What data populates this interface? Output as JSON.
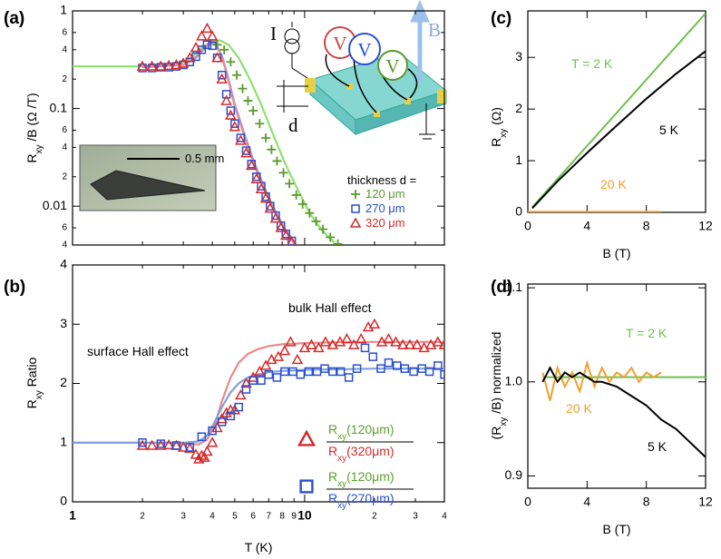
{
  "chart_data": [
    {
      "type": "scatter",
      "panel_label": "(a)",
      "y_label": [
        "R",
        "xy",
        " /B   (Ω /T)"
      ],
      "xscale": "log",
      "yscale": "log",
      "xlim": [
        1,
        40
      ],
      "ylim": [
        0.004,
        1
      ],
      "xticks": [
        1,
        2,
        3,
        4,
        5,
        6,
        7,
        8,
        9,
        10,
        20,
        30,
        40
      ],
      "yticks": [
        1,
        {
          "value": 0.6,
          "label": "6"
        },
        {
          "value": 0.4,
          "label": "4"
        },
        {
          "value": 0.2,
          "label": "2"
        },
        0.1,
        {
          "value": 0.06,
          "label": "6"
        },
        {
          "value": 0.04,
          "label": "4"
        },
        {
          "value": 0.02,
          "label": "2"
        },
        0.01,
        {
          "value": 0.006,
          "label": "6"
        },
        {
          "value": 0.004,
          "label": "4"
        }
      ],
      "legend_title": "thickness d =",
      "inset_scale": "0.5 mm",
      "schematic_labels": [
        "I",
        "V",
        "V",
        "V",
        "B",
        "d"
      ],
      "series": [
        {
          "name": "120 μm",
          "color": "#5a9a2c",
          "marker": "plus",
          "x": [
            4.2,
            4.5,
            4.8,
            5.1,
            5.4,
            5.7,
            6.0,
            6.4,
            6.8,
            7.2,
            7.6,
            8.1,
            8.6,
            9.2,
            9.8,
            10.5,
            11.2,
            12.0,
            12.9,
            13.9
          ],
          "values": [
            0.45,
            0.4,
            0.3,
            0.22,
            0.16,
            0.12,
            0.095,
            0.07,
            0.05,
            0.038,
            0.029,
            0.022,
            0.017,
            0.013,
            0.0105,
            0.0085,
            0.007,
            0.0058,
            0.0048,
            0.0041
          ]
        },
        {
          "name": "270 μm",
          "color": "#2a4fd0",
          "marker": "square",
          "x": [
            2.0,
            2.2,
            2.4,
            2.6,
            2.8,
            3.0,
            3.2,
            3.4,
            3.6,
            3.8,
            4.0,
            4.2,
            4.4,
            4.6,
            4.8,
            5.0,
            5.3,
            5.6,
            5.9,
            6.2,
            6.5,
            6.8,
            7.1,
            7.5,
            7.9,
            8.3,
            8.8
          ],
          "values": [
            0.26,
            0.26,
            0.265,
            0.265,
            0.27,
            0.28,
            0.3,
            0.34,
            0.4,
            0.45,
            0.44,
            0.33,
            0.22,
            0.14,
            0.095,
            0.07,
            0.05,
            0.037,
            0.027,
            0.02,
            0.016,
            0.0125,
            0.01,
            0.008,
            0.0063,
            0.0052,
            0.0044
          ]
        },
        {
          "name": "320 μm",
          "color": "#d42a2a",
          "marker": "triangle",
          "x": [
            2.0,
            2.2,
            2.4,
            2.6,
            2.8,
            3.0,
            3.2,
            3.4,
            3.6,
            3.8,
            4.0,
            4.2,
            4.4,
            4.6,
            4.8,
            5.0,
            5.3,
            5.6,
            5.9,
            6.2,
            6.5,
            6.8,
            7.1,
            7.5,
            7.9,
            8.3,
            8.8
          ],
          "values": [
            0.27,
            0.27,
            0.27,
            0.275,
            0.28,
            0.29,
            0.33,
            0.42,
            0.55,
            0.66,
            0.55,
            0.33,
            0.2,
            0.12,
            0.085,
            0.065,
            0.047,
            0.035,
            0.026,
            0.019,
            0.015,
            0.012,
            0.0095,
            0.0075,
            0.006,
            0.005,
            0.0043
          ]
        },
        {
          "color": "#8ee070",
          "marker": "line",
          "x": [
            1,
            2,
            2.8,
            3.2,
            3.6,
            4.0,
            4.3,
            4.7,
            5.2,
            5.8,
            6.5,
            7.3,
            8.2,
            9.3,
            10.5,
            12,
            13.5
          ],
          "values": [
            0.27,
            0.27,
            0.28,
            0.32,
            0.42,
            0.49,
            0.5,
            0.45,
            0.33,
            0.2,
            0.11,
            0.055,
            0.028,
            0.015,
            0.0085,
            0.0055,
            0.0042
          ]
        },
        {
          "color": "#7f9fe0",
          "marker": "line",
          "x": [
            2,
            3,
            3.4,
            3.8,
            4.1,
            4.4,
            4.7,
            5.0,
            5.5,
            6,
            6.6,
            7.3,
            8.1,
            9.2
          ],
          "values": [
            0.265,
            0.28,
            0.33,
            0.44,
            0.47,
            0.35,
            0.2,
            0.11,
            0.055,
            0.03,
            0.017,
            0.01,
            0.0062,
            0.004
          ]
        },
        {
          "color": "#e88a9a",
          "marker": "line",
          "x": [
            2,
            3,
            3.4,
            3.8,
            4.1,
            4.4,
            4.7,
            5.0,
            5.5,
            6,
            6.6,
            7.3,
            8.1,
            9.1
          ],
          "values": [
            0.27,
            0.28,
            0.34,
            0.45,
            0.47,
            0.34,
            0.19,
            0.105,
            0.052,
            0.028,
            0.016,
            0.0095,
            0.006,
            0.004
          ]
        }
      ]
    },
    {
      "type": "scatter",
      "panel_label": "(b)",
      "x_label": "T (K)",
      "y_label": [
        "R",
        "xy",
        "   Ratio"
      ],
      "xscale": "log",
      "xlim": [
        1,
        40
      ],
      "ylim": [
        0,
        4
      ],
      "xticks": [
        1,
        2,
        3,
        4,
        5,
        6,
        7,
        8,
        9,
        10,
        {
          "value": 20,
          "label": "2"
        },
        {
          "value": 30,
          "label": "3"
        },
        {
          "value": 40,
          "label": "4"
        }
      ],
      "yticks": [
        0,
        1,
        2,
        3,
        4
      ],
      "annotations": [
        "surface Hall effect",
        "bulk Hall effect"
      ],
      "series": [
        {
          "name": {
            "numerator": [
              "R",
              "xy",
              "(120μm)"
            ],
            "denominator": [
              "R",
              "xy",
              "(320μm)"
            ]
          },
          "color": "#d42a2a",
          "marker": "triangle",
          "x": [
            2,
            2.2,
            2.4,
            2.6,
            2.8,
            3.0,
            3.2,
            3.4,
            3.5,
            3.6,
            3.7,
            3.8,
            4.0,
            4.2,
            4.4,
            4.6,
            4.8,
            5.0,
            5.3,
            5.6,
            6.0,
            6.4,
            6.8,
            7.2,
            7.7,
            8.2,
            8.7,
            9.3,
            10,
            10.7,
            11.5,
            12.3,
            13.2,
            14.2,
            15.2,
            16.3,
            17.5,
            18.8,
            20,
            21.5,
            23,
            24.7,
            26.5,
            28.4,
            30.5,
            32.7,
            35,
            37.5,
            40
          ],
          "values": [
            0.95,
            0.95,
            0.95,
            0.96,
            0.95,
            0.92,
            0.9,
            0.8,
            0.72,
            0.78,
            0.75,
            0.85,
            1.0,
            1.25,
            1.4,
            1.5,
            1.55,
            1.55,
            1.8,
            2.0,
            2.1,
            2.2,
            2.3,
            2.4,
            2.45,
            2.55,
            2.7,
            2.4,
            2.6,
            2.65,
            2.6,
            2.7,
            2.65,
            2.7,
            2.75,
            2.65,
            2.75,
            2.95,
            3.0,
            2.7,
            2.75,
            2.7,
            2.65,
            2.65,
            2.65,
            2.6,
            2.65,
            2.7,
            2.65
          ]
        },
        {
          "name": {
            "numerator": [
              "R",
              "xy",
              "(120μm)"
            ],
            "denominator": [
              "R",
              "xy",
              "(270μm)"
            ]
          },
          "color": "#2a4fd0",
          "marker": "square",
          "x": [
            2,
            2.4,
            2.8,
            3.2,
            3.6,
            4.0,
            4.4,
            4.8,
            5.2,
            5.6,
            6.0,
            6.5,
            7.0,
            7.6,
            8.2,
            8.9,
            9.6,
            10.4,
            11.3,
            12.2,
            13.2,
            14.3,
            15.5,
            16.8,
            18.2,
            19.7,
            21.3,
            23,
            25,
            27,
            29.5,
            32,
            34.5,
            37.5,
            40
          ],
          "values": [
            1.0,
            0.98,
            0.95,
            0.92,
            1.1,
            1.2,
            1.35,
            1.45,
            1.6,
            1.9,
            2.05,
            2.05,
            2.15,
            2.1,
            2.2,
            2.2,
            2.15,
            2.2,
            2.2,
            2.25,
            2.2,
            2.2,
            2.1,
            2.25,
            2.6,
            2.45,
            2.25,
            2.35,
            2.3,
            2.25,
            2.2,
            2.25,
            2.2,
            2.3,
            2.15
          ]
        },
        {
          "color": "#e88a8a",
          "marker": "line",
          "x": [
            1,
            2,
            3,
            3.5,
            3.8,
            4.1,
            4.4,
            4.8,
            5.2,
            5.7,
            6.3,
            7,
            8,
            10,
            15,
            20,
            30,
            40
          ],
          "values": [
            1,
            1,
            0.99,
            0.97,
            1.05,
            1.3,
            1.7,
            2.1,
            2.35,
            2.5,
            2.58,
            2.63,
            2.66,
            2.68,
            2.7,
            2.7,
            2.7,
            2.7
          ]
        },
        {
          "color": "#7f9fe0",
          "marker": "line",
          "x": [
            1,
            2,
            3,
            3.5,
            3.8,
            4.1,
            4.4,
            4.8,
            5.2,
            5.7,
            6.3,
            7,
            8,
            10,
            15,
            20,
            30,
            40
          ],
          "values": [
            1,
            1,
            1,
            1.02,
            1.12,
            1.35,
            1.6,
            1.85,
            2.0,
            2.1,
            2.15,
            2.19,
            2.21,
            2.23,
            2.24,
            2.25,
            2.25,
            2.25
          ]
        }
      ]
    },
    {
      "type": "line",
      "panel_label": "(c)",
      "x_label": "B (T)",
      "y_label": [
        "R",
        "xy",
        "  (Ω)"
      ],
      "xlim": [
        0,
        12
      ],
      "ylim": [
        0,
        3.9
      ],
      "xticks": [
        0,
        4,
        8,
        12
      ],
      "yticks": [
        0,
        1,
        2,
        3
      ],
      "series": [
        {
          "name": "T = 2 K",
          "color": "#6cc24a",
          "x": [
            0.3,
            12
          ],
          "values": [
            0.1,
            3.85
          ]
        },
        {
          "name": "5 K",
          "color": "#000000",
          "x": [
            0.3,
            2,
            4,
            6,
            8,
            10,
            12
          ],
          "values": [
            0.08,
            0.6,
            1.15,
            1.68,
            2.2,
            2.68,
            3.12
          ]
        },
        {
          "name": "20 K",
          "color": "#f0a030",
          "x": [
            0,
            9
          ],
          "values": [
            0.01,
            0.01
          ]
        }
      ]
    },
    {
      "type": "line",
      "panel_label": "(d)",
      "x_label": "B (T)",
      "y_label": [
        "(R",
        "xy",
        " /B) normalized"
      ],
      "xlim": [
        0,
        12
      ],
      "ylim": [
        0.887,
        1.104
      ],
      "xticks": [
        0,
        4,
        8,
        12
      ],
      "yticks": [
        0.9,
        {
          "value": 1.0,
          "label": "1.0"
        },
        1.1
      ],
      "series": [
        {
          "name": "T = 2 K",
          "color": "#6cc24a",
          "x": [
            1,
            3,
            6,
            9,
            12
          ],
          "values": [
            1.005,
            1.005,
            1.005,
            1.005,
            1.005
          ]
        },
        {
          "name": "20 K",
          "color": "#f0a030",
          "x": [
            1,
            1.5,
            2,
            2.5,
            3,
            3.5,
            4,
            4.5,
            5,
            5.5,
            6,
            6.5,
            7,
            7.5,
            8,
            8.5,
            9
          ],
          "values": [
            1.01,
            0.98,
            1.015,
            0.995,
            1.01,
            0.99,
            1.02,
            0.995,
            1.015,
            1.0,
            1.01,
            1.005,
            1.015,
            1.0,
            1.01,
            1.005,
            1.01
          ]
        },
        {
          "name": "5 K",
          "color": "#000000",
          "x": [
            1,
            1.5,
            2,
            2.5,
            3,
            3.5,
            4,
            4.5,
            5,
            6,
            7,
            8,
            9,
            10,
            11,
            12
          ],
          "values": [
            1.0,
            1.015,
            1.0,
            1.01,
            1.005,
            1.01,
            1.005,
            1.0,
            1.0,
            0.995,
            0.985,
            0.975,
            0.96,
            0.95,
            0.935,
            0.92
          ]
        }
      ]
    }
  ]
}
